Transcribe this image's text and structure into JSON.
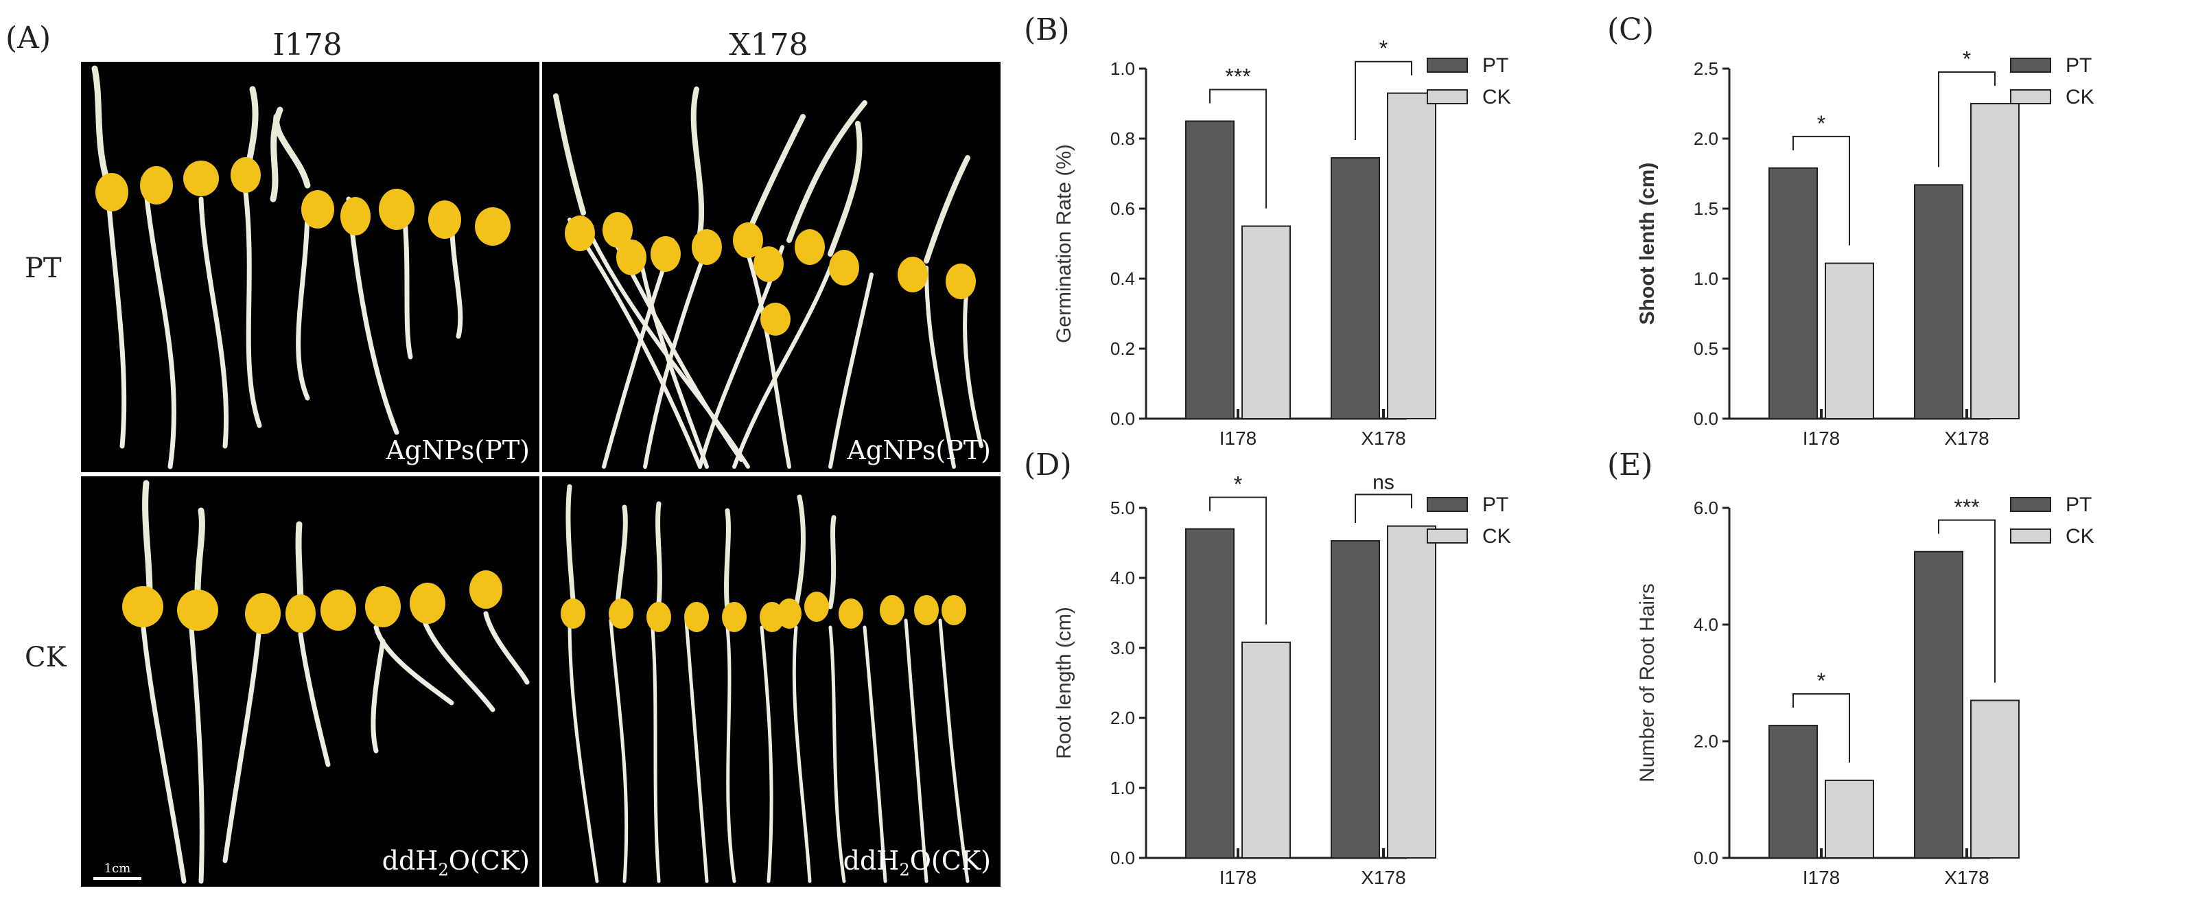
{
  "panel_labels": {
    "a": "(A)",
    "b": "(B)",
    "c": "(C)",
    "d": "(D)",
    "e": "(E)"
  },
  "photos": {
    "col_labels": [
      "I178",
      "X178"
    ],
    "row_labels": [
      "PT",
      "CK"
    ],
    "captions": {
      "pt": "AgNPs(PT)",
      "ck_prefix": "ddH",
      "ck_sub": "2",
      "ck_suffix": "O(CK)"
    },
    "scale_label": "1cm"
  },
  "colors": {
    "pt": "#5a5a5a",
    "ck": "#d4d4d4"
  },
  "chart_data": [
    {
      "id": "B",
      "type": "bar",
      "categories": [
        "I178",
        "X178"
      ],
      "series": [
        {
          "name": "PT",
          "values": [
            0.85,
            0.745
          ]
        },
        {
          "name": "CK",
          "values": [
            0.55,
            0.93
          ]
        }
      ],
      "ylabel": "Germination Rate (%)",
      "ylabel_bold": false,
      "ylim": [
        0,
        1.0
      ],
      "ticks": [
        "0.0",
        "0.2",
        "0.4",
        "0.6",
        "0.8",
        "1.0"
      ],
      "significance": [
        "***",
        "*"
      ],
      "legend": "top-right"
    },
    {
      "id": "C",
      "type": "bar",
      "categories": [
        "I178",
        "X178"
      ],
      "series": [
        {
          "name": "PT",
          "values": [
            1.79,
            1.67
          ]
        },
        {
          "name": "CK",
          "values": [
            1.11,
            2.25
          ]
        }
      ],
      "ylabel": "Shoot lenth (cm)",
      "ylabel_bold": true,
      "ylim": [
        0,
        2.5
      ],
      "ticks": [
        "0.0",
        "0.5",
        "1.0",
        "1.5",
        "2.0",
        "2.5"
      ],
      "significance": [
        "*",
        "*"
      ],
      "legend": "top-right"
    },
    {
      "id": "D",
      "type": "bar",
      "categories": [
        "I178",
        "X178"
      ],
      "series": [
        {
          "name": "PT",
          "values": [
            4.7,
            4.53
          ]
        },
        {
          "name": "CK",
          "values": [
            3.08,
            4.74
          ]
        }
      ],
      "ylabel": "Root length (cm)",
      "ylabel_bold": false,
      "ylim": [
        0,
        5.0
      ],
      "ticks": [
        "0.0",
        "1.0",
        "2.0",
        "3.0",
        "4.0",
        "5.0"
      ],
      "significance": [
        "*",
        "ns"
      ],
      "legend": "top-right"
    },
    {
      "id": "E",
      "type": "bar",
      "categories": [
        "I178",
        "X178"
      ],
      "series": [
        {
          "name": "PT",
          "values": [
            2.27,
            5.25
          ]
        },
        {
          "name": "CK",
          "values": [
            1.33,
            2.7
          ]
        }
      ],
      "ylabel": "Number of Root Hairs",
      "ylabel_bold": false,
      "ylim": [
        0,
        6.0
      ],
      "ticks": [
        "0.0",
        "2.0",
        "4.0",
        "6.0"
      ],
      "significance": [
        "*",
        "***"
      ],
      "legend": "top-right"
    }
  ]
}
